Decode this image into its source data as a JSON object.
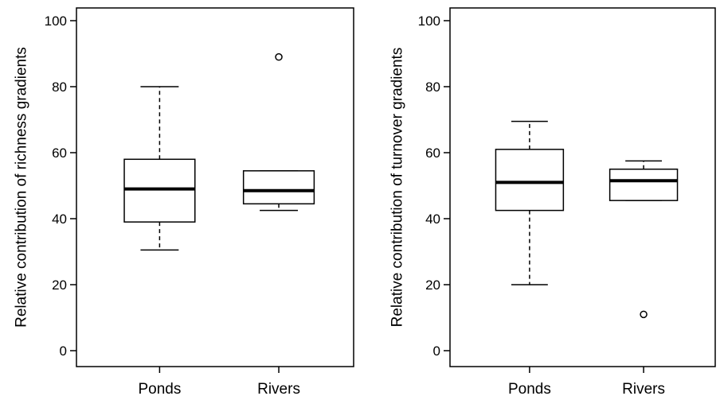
{
  "chart_data": [
    {
      "type": "box",
      "ylabel": "Relative contribution of richness gradients",
      "ylim": [
        0,
        100
      ],
      "yticks": [
        0,
        20,
        40,
        60,
        80,
        100
      ],
      "categories": [
        "Ponds",
        "Rivers"
      ],
      "boxes": [
        {
          "name": "Ponds",
          "whisker_low": 30.5,
          "q1": 39.0,
          "median": 49.0,
          "q3": 58.0,
          "whisker_high": 80.0,
          "outliers": []
        },
        {
          "name": "Rivers",
          "whisker_low": 42.5,
          "q1": 44.5,
          "median": 48.5,
          "q3": 54.5,
          "whisker_high": 54.5,
          "outliers": [
            89.0
          ]
        }
      ]
    },
    {
      "type": "box",
      "ylabel": "Relative contribution of turnover gradients",
      "ylim": [
        0,
        100
      ],
      "yticks": [
        0,
        20,
        40,
        60,
        80,
        100
      ],
      "categories": [
        "Ponds",
        "Rivers"
      ],
      "boxes": [
        {
          "name": "Ponds",
          "whisker_low": 20.0,
          "q1": 42.5,
          "median": 51.0,
          "q3": 61.0,
          "whisker_high": 69.5,
          "outliers": []
        },
        {
          "name": "Rivers",
          "whisker_low": 45.5,
          "q1": 45.5,
          "median": 51.5,
          "q3": 55.0,
          "whisker_high": 57.5,
          "outliers": [
            11.0
          ]
        }
      ]
    }
  ]
}
